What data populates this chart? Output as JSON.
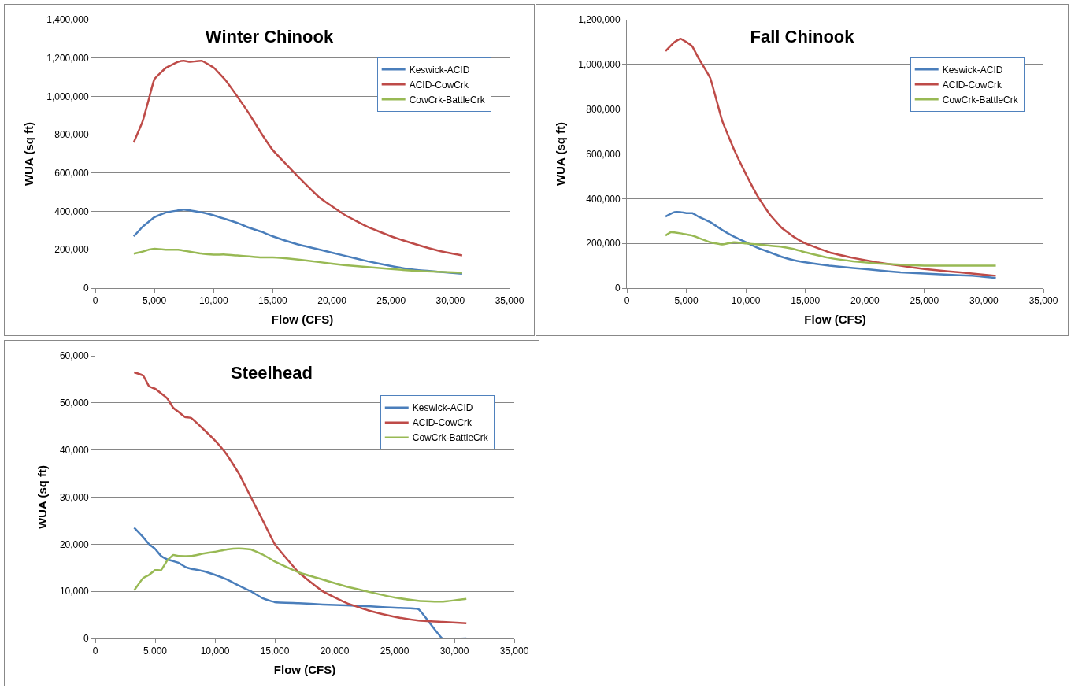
{
  "chart_data": [
    {
      "type": "line",
      "title": "Winter Chinook",
      "xlabel": "Flow (CFS)",
      "ylabel": "WUA (sq ft)",
      "legend": "top right",
      "grid": "y",
      "marker": "none",
      "line_style": "solid",
      "xlim": [
        0,
        35000
      ],
      "xticks": [
        {
          "value": 0,
          "label": "0"
        },
        {
          "value": 5000,
          "label": "5,000"
        },
        {
          "value": 10000,
          "label": "10,000"
        },
        {
          "value": 15000,
          "label": "15,000"
        },
        {
          "value": 20000,
          "label": "20,000"
        },
        {
          "value": 25000,
          "label": "25,000"
        },
        {
          "value": 30000,
          "label": "30,000"
        },
        {
          "value": 35000,
          "label": "35,000"
        }
      ],
      "ylim": [
        0,
        1400000
      ],
      "yticks": [
        {
          "value": 0,
          "label": "0"
        },
        {
          "value": 200000,
          "label": "200,000"
        },
        {
          "value": 400000,
          "label": "400,000"
        },
        {
          "value": 600000,
          "label": "600,000"
        },
        {
          "value": 800000,
          "label": "800,000"
        },
        {
          "value": 1000000,
          "label": "1,000,000"
        },
        {
          "value": 1200000,
          "label": "1,200,000"
        },
        {
          "value": 1400000,
          "label": "1,400,000"
        }
      ],
      "series": [
        {
          "name": "Keswick-ACID",
          "color": "#4a7ebb",
          "x": [
            3250,
            4000,
            4500,
            5000,
            6000,
            7000,
            7500,
            8000,
            9000,
            10000,
            11000,
            12000,
            13000,
            14000,
            15000,
            17000,
            19000,
            21000,
            23000,
            25000,
            27000,
            29000,
            31000
          ],
          "values": [
            270000,
            320000,
            345000,
            370000,
            395000,
            405000,
            410000,
            405000,
            395000,
            380000,
            360000,
            340000,
            315000,
            295000,
            270000,
            230000,
            200000,
            170000,
            140000,
            115000,
            95000,
            85000,
            75000
          ]
        },
        {
          "name": "ACID-CowCrk",
          "color": "#be4b48",
          "x": [
            3250,
            4000,
            4500,
            5000,
            6000,
            7000,
            7500,
            8000,
            9000,
            10000,
            11000,
            12000,
            13000,
            14000,
            15000,
            17000,
            19000,
            21000,
            23000,
            25000,
            27000,
            29000,
            31000
          ],
          "values": [
            760000,
            870000,
            980000,
            1090000,
            1150000,
            1180000,
            1185000,
            1180000,
            1185000,
            1150000,
            1085000,
            1000000,
            910000,
            810000,
            720000,
            590000,
            470000,
            385000,
            320000,
            270000,
            230000,
            195000,
            170000
          ]
        },
        {
          "name": "CowCrk-BattleCrk",
          "color": "#98b954",
          "x": [
            3250,
            4000,
            4500,
            5000,
            6000,
            7000,
            7500,
            8000,
            9000,
            10000,
            11000,
            12000,
            13000,
            14000,
            15000,
            17000,
            19000,
            21000,
            23000,
            25000,
            27000,
            29000,
            31000
          ],
          "values": [
            180000,
            190000,
            200000,
            205000,
            200000,
            200000,
            195000,
            190000,
            180000,
            175000,
            175000,
            170000,
            165000,
            160000,
            160000,
            150000,
            135000,
            120000,
            110000,
            100000,
            90000,
            85000,
            80000
          ]
        }
      ]
    },
    {
      "type": "line",
      "title": "Fall Chinook",
      "xlabel": "Flow (CFS)",
      "ylabel": "WUA (sq ft)",
      "legend": "top right",
      "grid": "y",
      "marker": "none",
      "line_style": "solid",
      "xlim": [
        0,
        35000
      ],
      "xticks": [
        {
          "value": 0,
          "label": "0"
        },
        {
          "value": 5000,
          "label": "5,000"
        },
        {
          "value": 10000,
          "label": "10,000"
        },
        {
          "value": 15000,
          "label": "15,000"
        },
        {
          "value": 20000,
          "label": "20,000"
        },
        {
          "value": 25000,
          "label": "25,000"
        },
        {
          "value": 30000,
          "label": "30,000"
        },
        {
          "value": 35000,
          "label": "35,000"
        }
      ],
      "ylim": [
        0,
        1200000
      ],
      "yticks": [
        {
          "value": 0,
          "label": "0"
        },
        {
          "value": 200000,
          "label": "200,000"
        },
        {
          "value": 400000,
          "label": "400,000"
        },
        {
          "value": 600000,
          "label": "600,000"
        },
        {
          "value": 800000,
          "label": "800,000"
        },
        {
          "value": 1000000,
          "label": "1,000,000"
        },
        {
          "value": 1200000,
          "label": "1,200,000"
        }
      ],
      "series": [
        {
          "name": "Keswick-ACID",
          "color": "#4a7ebb",
          "x": [
            3250,
            4000,
            4500,
            5000,
            5500,
            6000,
            7000,
            8000,
            9000,
            10000,
            11000,
            12000,
            13000,
            14000,
            15000,
            17000,
            19000,
            21000,
            23000,
            25000,
            27000,
            29000,
            31000
          ],
          "values": [
            320000,
            340000,
            340000,
            335000,
            335000,
            320000,
            295000,
            260000,
            230000,
            205000,
            180000,
            160000,
            140000,
            125000,
            115000,
            100000,
            90000,
            80000,
            70000,
            65000,
            60000,
            55000,
            45000
          ]
        },
        {
          "name": "ACID-CowCrk",
          "color": "#be4b48",
          "x": [
            3250,
            4000,
            4500,
            5000,
            5500,
            6000,
            7000,
            8000,
            9000,
            10000,
            11000,
            12000,
            13000,
            14000,
            15000,
            17000,
            19000,
            21000,
            23000,
            25000,
            27000,
            29000,
            31000
          ],
          "values": [
            1060000,
            1100000,
            1115000,
            1100000,
            1080000,
            1030000,
            940000,
            750000,
            620000,
            510000,
            410000,
            330000,
            270000,
            230000,
            200000,
            160000,
            135000,
            115000,
            100000,
            85000,
            75000,
            65000,
            55000
          ]
        },
        {
          "name": "CowCrk-BattleCrk",
          "color": "#98b954",
          "x": [
            3250,
            3700,
            4500,
            5000,
            5500,
            6000,
            7000,
            8000,
            9000,
            10000,
            11000,
            12000,
            13000,
            14000,
            15000,
            17000,
            19000,
            21000,
            23000,
            25000,
            27000,
            29000,
            31000
          ],
          "values": [
            235000,
            250000,
            245000,
            240000,
            235000,
            225000,
            205000,
            195000,
            205000,
            200000,
            195000,
            190000,
            185000,
            175000,
            160000,
            135000,
            120000,
            110000,
            105000,
            100000,
            100000,
            100000,
            100000
          ]
        }
      ]
    },
    {
      "type": "line",
      "title": "Steelhead",
      "xlabel": "Flow (CFS)",
      "ylabel": "WUA (sq ft)",
      "legend": "top right",
      "grid": "y",
      "marker": "none",
      "line_style": "solid",
      "xlim": [
        0,
        35000
      ],
      "xticks": [
        {
          "value": 0,
          "label": "0"
        },
        {
          "value": 5000,
          "label": "5,000"
        },
        {
          "value": 10000,
          "label": "10,000"
        },
        {
          "value": 15000,
          "label": "15,000"
        },
        {
          "value": 20000,
          "label": "20,000"
        },
        {
          "value": 25000,
          "label": "25,000"
        },
        {
          "value": 30000,
          "label": "30,000"
        },
        {
          "value": 35000,
          "label": "35,000"
        }
      ],
      "ylim": [
        0,
        60000
      ],
      "yticks": [
        {
          "value": 0,
          "label": "0"
        },
        {
          "value": 10000,
          "label": "10,000"
        },
        {
          "value": 20000,
          "label": "20,000"
        },
        {
          "value": 30000,
          "label": "30,000"
        },
        {
          "value": 40000,
          "label": "40,000"
        },
        {
          "value": 50000,
          "label": "50,000"
        },
        {
          "value": 60000,
          "label": "60,000"
        }
      ],
      "series": [
        {
          "name": "Keswick-ACID",
          "color": "#4a7ebb",
          "x": [
            3250,
            4000,
            4500,
            5000,
            5500,
            6000,
            7000,
            7500,
            8000,
            9000,
            10000,
            11000,
            12000,
            13000,
            14000,
            15000,
            17000,
            19000,
            21000,
            23000,
            25000,
            27000,
            29000,
            31000
          ],
          "values": [
            23500,
            21500,
            20000,
            19000,
            17500,
            16800,
            16000,
            15200,
            14800,
            14300,
            13500,
            12500,
            11200,
            10000,
            8500,
            7700,
            7500,
            7200,
            7000,
            6800,
            6500,
            6200,
            0,
            0
          ]
        },
        {
          "name": "ACID-CowCrk",
          "color": "#be4b48",
          "x": [
            3250,
            4000,
            4500,
            5000,
            6000,
            6500,
            7000,
            7500,
            8000,
            9000,
            10000,
            11000,
            12000,
            13000,
            14000,
            15000,
            17000,
            19000,
            21000,
            23000,
            25000,
            27000,
            29000,
            31000
          ],
          "values": [
            56500,
            55800,
            53500,
            53000,
            51000,
            49000,
            48000,
            47000,
            46800,
            44500,
            42000,
            39000,
            35000,
            30000,
            25000,
            20000,
            14000,
            10000,
            7500,
            5800,
            4600,
            3800,
            3500,
            3200
          ]
        },
        {
          "name": "CowCrk-BattleCrk",
          "color": "#98b954",
          "x": [
            3250,
            4000,
            4500,
            5000,
            5500,
            6000,
            6500,
            7000,
            8000,
            9000,
            10000,
            11000,
            12000,
            13000,
            14000,
            15000,
            17000,
            19000,
            21000,
            23000,
            25000,
            27000,
            29000,
            31000
          ],
          "values": [
            10200,
            12800,
            13500,
            14500,
            14500,
            16500,
            17700,
            17500,
            17500,
            18000,
            18400,
            18900,
            19100,
            18900,
            17800,
            16300,
            14000,
            12500,
            11000,
            9800,
            8700,
            8000,
            7800,
            8400
          ]
        }
      ]
    }
  ]
}
